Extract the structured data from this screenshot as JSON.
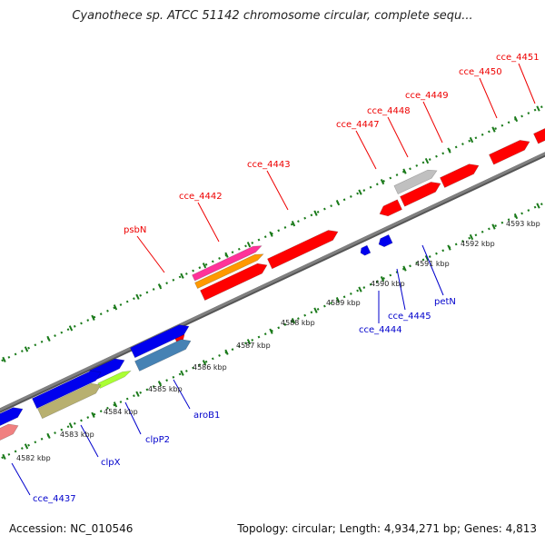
{
  "title": "Cyanothece sp. ATCC 51142 chromosome circular, complete sequ...",
  "footer": {
    "accession": "Accession: NC_010546",
    "summary": "Topology: circular; Length: 4,934,271 bp; Genes: 4,813"
  },
  "colors": {
    "backbone": "#808080",
    "tick": "#1a7a1a",
    "top_label": "#ee0000",
    "bottom_label": "#0000cc",
    "gene_red": "#ff0000",
    "gene_blue": "#0000ee",
    "gene_pink": "#ff3399",
    "gene_orange": "#ff9900",
    "gene_gray": "#c0c0c0",
    "gene_steel": "#4682b4",
    "gene_khaki": "#b8b070",
    "gene_lime": "#aaff33",
    "gene_salmon": "#f08080"
  },
  "top_labels": [
    "cce_4451",
    "cce_4450",
    "cce_4449",
    "cce_4448",
    "cce_4447",
    "cce_4443",
    "cce_4442",
    "psbN"
  ],
  "bottom_labels": [
    "petN",
    "cce_4445",
    "cce_4444",
    "aroB1",
    "clpP2",
    "clpX",
    "cce_4437"
  ],
  "kbp_labels": [
    "4593 kbp",
    "4592 kbp",
    "4591 kbp",
    "4590 kbp",
    "4589 kbp",
    "4588 kbp",
    "4587 kbp",
    "4586 kbp",
    "4585 kbp",
    "4584 kbp",
    "4583 kbp",
    "4582 kbp"
  ]
}
